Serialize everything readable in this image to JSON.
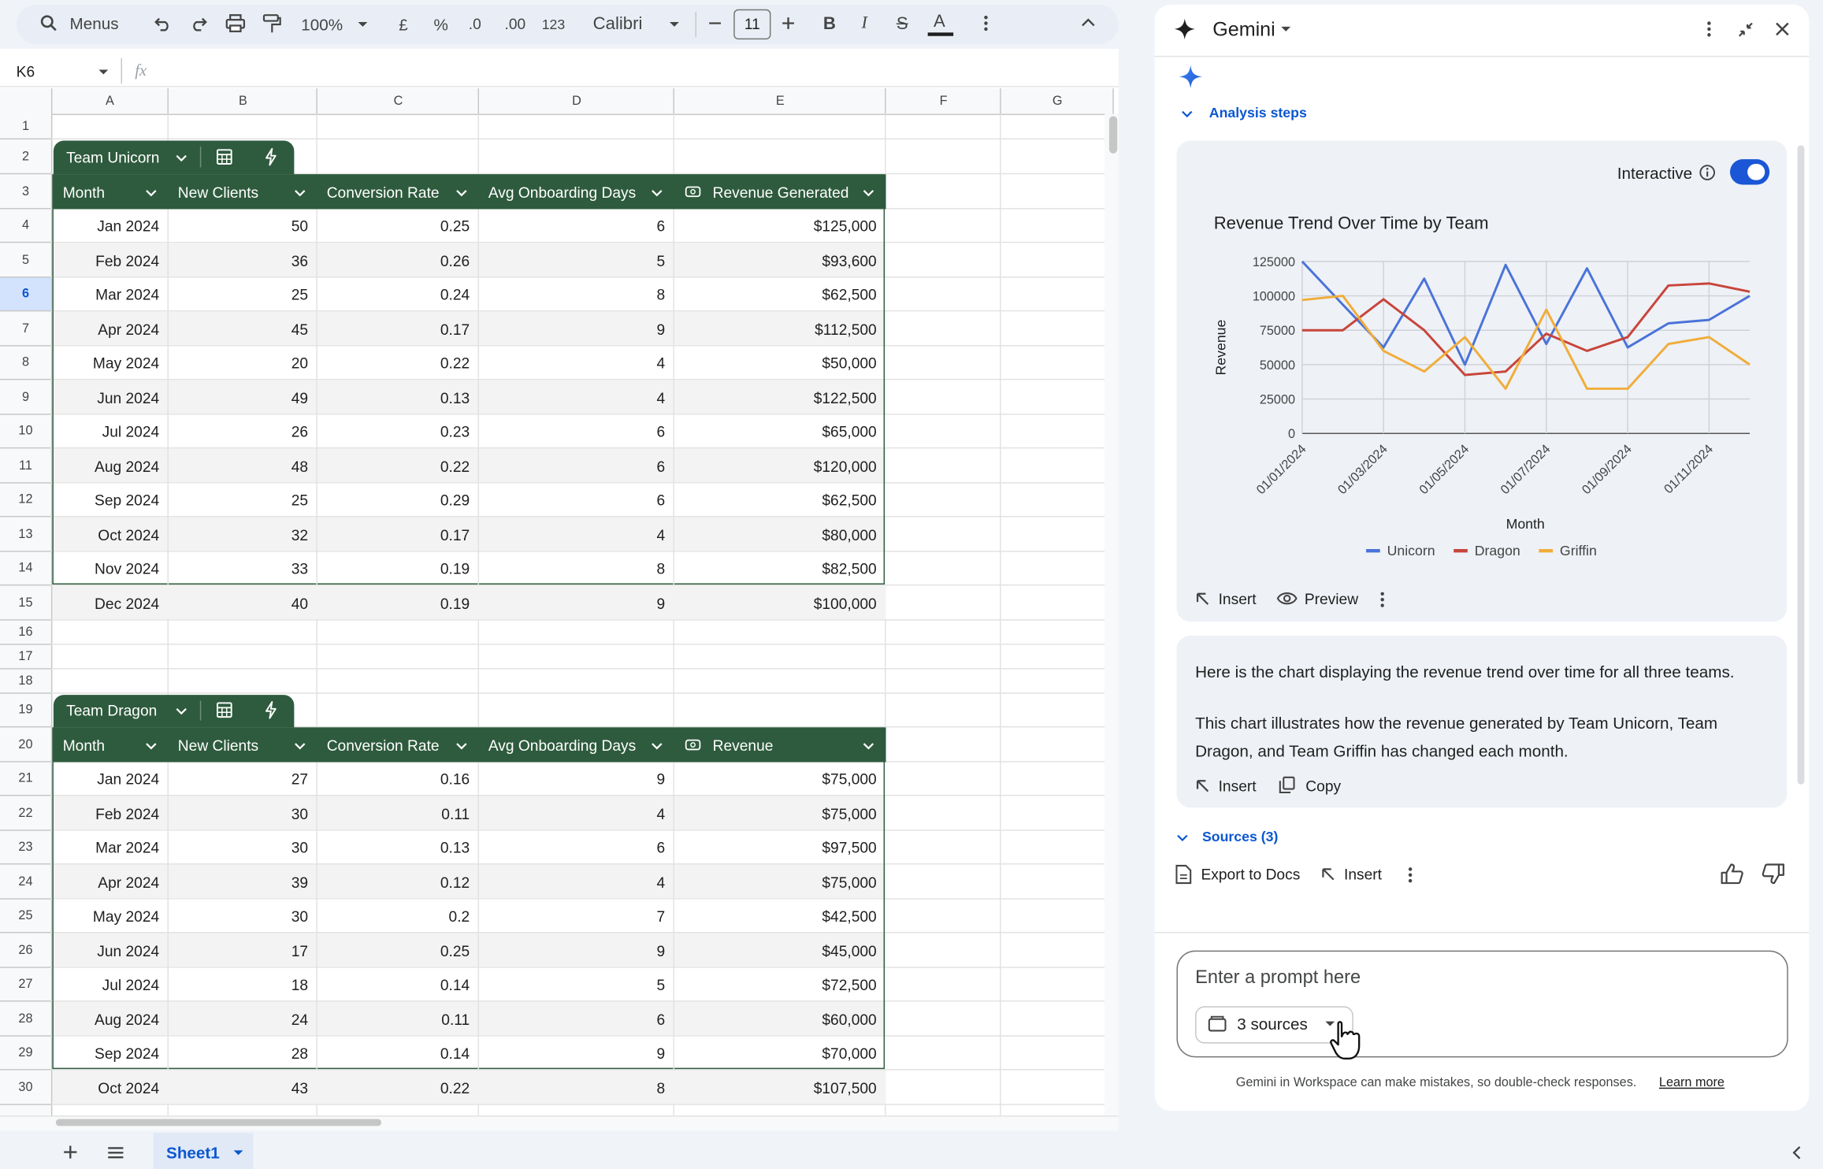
{
  "toolbar": {
    "search": "Menus",
    "zoom": "100%",
    "currency": "£",
    "percent": "%",
    "decrease_decimal": ".0",
    "increase_decimal": ".00",
    "number_format": "123",
    "font": "Calibri",
    "font_size": "11",
    "bold": "B",
    "italic": "I",
    "strikethrough": "S",
    "text_color": "A"
  },
  "formula_bar": {
    "cell": "K6",
    "fx": "fx"
  },
  "columns": [
    "A",
    "B",
    "C",
    "D",
    "E",
    "F",
    "G"
  ],
  "rows": [
    "1",
    "2",
    "3",
    "4",
    "5",
    "6",
    "7",
    "8",
    "9",
    "10",
    "11",
    "12",
    "13",
    "14",
    "15",
    "16",
    "17",
    "18",
    "19",
    "20",
    "21",
    "22",
    "23",
    "24",
    "25",
    "26",
    "27",
    "28",
    "29",
    "30"
  ],
  "tables": [
    {
      "name": "Team Unicorn",
      "headers": [
        "Month",
        "New Clients",
        "Conversion Rate",
        "Avg Onboarding Days",
        "Revenue Generated"
      ],
      "rows": [
        [
          "Jan 2024",
          "50",
          "0.25",
          "6",
          "$125,000"
        ],
        [
          "Feb 2024",
          "36",
          "0.26",
          "5",
          "$93,600"
        ],
        [
          "Mar 2024",
          "25",
          "0.24",
          "8",
          "$62,500"
        ],
        [
          "Apr 2024",
          "45",
          "0.17",
          "9",
          "$112,500"
        ],
        [
          "May 2024",
          "20",
          "0.22",
          "4",
          "$50,000"
        ],
        [
          "Jun 2024",
          "49",
          "0.13",
          "4",
          "$122,500"
        ],
        [
          "Jul 2024",
          "26",
          "0.23",
          "6",
          "$65,000"
        ],
        [
          "Aug 2024",
          "48",
          "0.22",
          "6",
          "$120,000"
        ],
        [
          "Sep 2024",
          "25",
          "0.29",
          "6",
          "$62,500"
        ],
        [
          "Oct 2024",
          "32",
          "0.17",
          "4",
          "$80,000"
        ],
        [
          "Nov 2024",
          "33",
          "0.19",
          "8",
          "$82,500"
        ],
        [
          "Dec 2024",
          "40",
          "0.19",
          "9",
          "$100,000"
        ]
      ]
    },
    {
      "name": "Team Dragon",
      "headers": [
        "Month",
        "New Clients",
        "Conversion Rate",
        "Avg Onboarding Days",
        "Revenue"
      ],
      "rows": [
        [
          "Jan 2024",
          "27",
          "0.16",
          "9",
          "$75,000"
        ],
        [
          "Feb 2024",
          "30",
          "0.11",
          "4",
          "$75,000"
        ],
        [
          "Mar 2024",
          "30",
          "0.13",
          "6",
          "$97,500"
        ],
        [
          "Apr 2024",
          "39",
          "0.12",
          "4",
          "$75,000"
        ],
        [
          "May 2024",
          "30",
          "0.2",
          "7",
          "$42,500"
        ],
        [
          "Jun 2024",
          "17",
          "0.25",
          "9",
          "$45,000"
        ],
        [
          "Jul 2024",
          "18",
          "0.14",
          "5",
          "$72,500"
        ],
        [
          "Aug 2024",
          "24",
          "0.11",
          "6",
          "$60,000"
        ],
        [
          "Sep 2024",
          "28",
          "0.14",
          "9",
          "$70,000"
        ],
        [
          "Oct 2024",
          "43",
          "0.22",
          "8",
          "$107,500"
        ]
      ]
    }
  ],
  "sheet_tab": "Sheet1",
  "gemini": {
    "title": "Gemini",
    "analysis_steps": "Analysis steps",
    "interactive": "Interactive",
    "chart_actions": [
      "Insert",
      "Preview"
    ],
    "message": [
      "Here is the chart displaying the revenue trend over time for all three teams.",
      "This chart illustrates how the revenue generated by Team Unicorn, Team Dragon, and Team Griffin has changed each month."
    ],
    "message_actions": [
      "Insert",
      "Copy"
    ],
    "sources": "Sources (3)",
    "response_actions": [
      "Export to Docs",
      "Insert"
    ],
    "prompt_placeholder": "Enter a prompt here",
    "sources_chip": "3 sources",
    "disclaimer": "Gemini in Workspace can make mistakes, so double-check responses.",
    "learn_more": "Learn more"
  },
  "chart_data": {
    "type": "line",
    "title": "Revenue Trend Over Time by Team",
    "x_label": "Month",
    "y_label": "Revenue",
    "categories": [
      "01/01/2024",
      null,
      "01/03/2024",
      null,
      "01/05/2024",
      null,
      "01/07/2024",
      null,
      "01/09/2024",
      null,
      "01/11/2024",
      null
    ],
    "series": [
      {
        "name": "Unicorn",
        "color": "#4a73d9",
        "values": [
          125000,
          93600,
          62500,
          112500,
          50000,
          122500,
          65000,
          120000,
          62500,
          80000,
          82500,
          100000
        ]
      },
      {
        "name": "Dragon",
        "color": "#c8453b",
        "values": [
          75000,
          75000,
          97500,
          75000,
          42500,
          45000,
          72500,
          60000,
          70000,
          107500,
          109000,
          103000
        ]
      },
      {
        "name": "Griffin",
        "color": "#f0ad3a",
        "values": [
          97000,
          100000,
          60000,
          45000,
          70000,
          32500,
          90000,
          32500,
          32500,
          65000,
          70000,
          50000
        ]
      }
    ],
    "ylim": [
      0,
      125000
    ],
    "yticks": [
      0,
      25000,
      50000,
      75000,
      100000,
      125000
    ],
    "grid": true,
    "legend": "bottom"
  }
}
